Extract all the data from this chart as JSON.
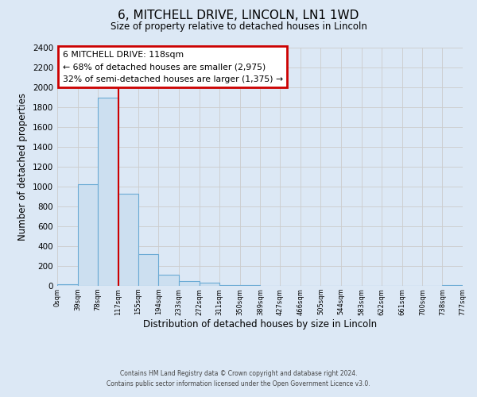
{
  "title": "6, MITCHELL DRIVE, LINCOLN, LN1 1WD",
  "subtitle": "Size of property relative to detached houses in Lincoln",
  "xlabel": "Distribution of detached houses by size in Lincoln",
  "ylabel": "Number of detached properties",
  "bin_edges": [
    0,
    39,
    78,
    117,
    155,
    194,
    233,
    272,
    311,
    350,
    389,
    427,
    466,
    505,
    544,
    583,
    622,
    661,
    700,
    738,
    777
  ],
  "bin_labels": [
    "0sqm",
    "39sqm",
    "78sqm",
    "117sqm",
    "155sqm",
    "194sqm",
    "233sqm",
    "272sqm",
    "311sqm",
    "350sqm",
    "389sqm",
    "427sqm",
    "466sqm",
    "505sqm",
    "544sqm",
    "583sqm",
    "622sqm",
    "661sqm",
    "700sqm",
    "738sqm",
    "777sqm"
  ],
  "bar_heights": [
    20,
    1025,
    1900,
    930,
    320,
    110,
    50,
    30,
    10,
    5,
    0,
    0,
    0,
    0,
    0,
    0,
    0,
    0,
    0,
    5
  ],
  "bar_color": "#ccdff0",
  "bar_edge_color": "#6aaad4",
  "red_line_x": 117,
  "annotation_title": "6 MITCHELL DRIVE: 118sqm",
  "annotation_line1": "← 68% of detached houses are smaller (2,975)",
  "annotation_line2": "32% of semi-detached houses are larger (1,375) →",
  "annotation_box_color": "#ffffff",
  "annotation_box_edge_color": "#cc0000",
  "red_line_color": "#cc0000",
  "ylim": [
    0,
    2400
  ],
  "yticks": [
    0,
    200,
    400,
    600,
    800,
    1000,
    1200,
    1400,
    1600,
    1800,
    2000,
    2200,
    2400
  ],
  "grid_color": "#cccccc",
  "background_color": "#dce8f5",
  "footer_line1": "Contains HM Land Registry data © Crown copyright and database right 2024.",
  "footer_line2": "Contains public sector information licensed under the Open Government Licence v3.0."
}
